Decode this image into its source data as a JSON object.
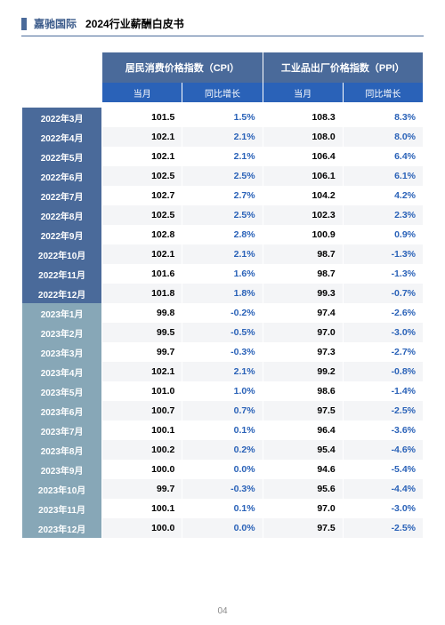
{
  "header": {
    "brand": "嘉驰国际",
    "title": "2024行业薪酬白皮书"
  },
  "table": {
    "groups": [
      {
        "label": "居民消费价格指数（CPI）"
      },
      {
        "label": "工业品出厂价格指数（PPI）"
      }
    ],
    "subcols": [
      "当月",
      "同比增长",
      "当月",
      "同比增长"
    ],
    "rows": [
      {
        "label": "2022年3月",
        "alt": false,
        "cpi": "101.5",
        "cpi_yoy": "1.5%",
        "ppi": "108.3",
        "ppi_yoy": "8.3%"
      },
      {
        "label": "2022年4月",
        "alt": false,
        "cpi": "102.1",
        "cpi_yoy": "2.1%",
        "ppi": "108.0",
        "ppi_yoy": "8.0%"
      },
      {
        "label": "2022年5月",
        "alt": false,
        "cpi": "102.1",
        "cpi_yoy": "2.1%",
        "ppi": "106.4",
        "ppi_yoy": "6.4%"
      },
      {
        "label": "2022年6月",
        "alt": false,
        "cpi": "102.5",
        "cpi_yoy": "2.5%",
        "ppi": "106.1",
        "ppi_yoy": "6.1%"
      },
      {
        "label": "2022年7月",
        "alt": false,
        "cpi": "102.7",
        "cpi_yoy": "2.7%",
        "ppi": "104.2",
        "ppi_yoy": "4.2%"
      },
      {
        "label": "2022年8月",
        "alt": false,
        "cpi": "102.5",
        "cpi_yoy": "2.5%",
        "ppi": "102.3",
        "ppi_yoy": "2.3%"
      },
      {
        "label": "2022年9月",
        "alt": false,
        "cpi": "102.8",
        "cpi_yoy": "2.8%",
        "ppi": "100.9",
        "ppi_yoy": "0.9%"
      },
      {
        "label": "2022年10月",
        "alt": false,
        "cpi": "102.1",
        "cpi_yoy": "2.1%",
        "ppi": "98.7",
        "ppi_yoy": "-1.3%"
      },
      {
        "label": "2022年11月",
        "alt": false,
        "cpi": "101.6",
        "cpi_yoy": "1.6%",
        "ppi": "98.7",
        "ppi_yoy": "-1.3%"
      },
      {
        "label": "2022年12月",
        "alt": false,
        "cpi": "101.8",
        "cpi_yoy": "1.8%",
        "ppi": "99.3",
        "ppi_yoy": "-0.7%"
      },
      {
        "label": "2023年1月",
        "alt": true,
        "cpi": "99.8",
        "cpi_yoy": "-0.2%",
        "ppi": "97.4",
        "ppi_yoy": "-2.6%"
      },
      {
        "label": "2023年2月",
        "alt": true,
        "cpi": "99.5",
        "cpi_yoy": "-0.5%",
        "ppi": "97.0",
        "ppi_yoy": "-3.0%"
      },
      {
        "label": "2023年3月",
        "alt": true,
        "cpi": "99.7",
        "cpi_yoy": "-0.3%",
        "ppi": "97.3",
        "ppi_yoy": "-2.7%"
      },
      {
        "label": "2023年4月",
        "alt": true,
        "cpi": "102.1",
        "cpi_yoy": "2.1%",
        "ppi": "99.2",
        "ppi_yoy": "-0.8%"
      },
      {
        "label": "2023年5月",
        "alt": true,
        "cpi": "101.0",
        "cpi_yoy": "1.0%",
        "ppi": "98.6",
        "ppi_yoy": "-1.4%"
      },
      {
        "label": "2023年6月",
        "alt": true,
        "cpi": "100.7",
        "cpi_yoy": "0.7%",
        "ppi": "97.5",
        "ppi_yoy": "-2.5%"
      },
      {
        "label": "2023年7月",
        "alt": true,
        "cpi": "100.1",
        "cpi_yoy": "0.1%",
        "ppi": "96.4",
        "ppi_yoy": "-3.6%"
      },
      {
        "label": "2023年8月",
        "alt": true,
        "cpi": "100.2",
        "cpi_yoy": "0.2%",
        "ppi": "95.4",
        "ppi_yoy": "-4.6%"
      },
      {
        "label": "2023年9月",
        "alt": true,
        "cpi": "100.0",
        "cpi_yoy": "0.0%",
        "ppi": "94.6",
        "ppi_yoy": "-5.4%"
      },
      {
        "label": "2023年10月",
        "alt": true,
        "cpi": "99.7",
        "cpi_yoy": "-0.3%",
        "ppi": "95.6",
        "ppi_yoy": "-4.4%"
      },
      {
        "label": "2023年11月",
        "alt": true,
        "cpi": "100.1",
        "cpi_yoy": "0.1%",
        "ppi": "97.0",
        "ppi_yoy": "-3.0%"
      },
      {
        "label": "2023年12月",
        "alt": true,
        "cpi": "100.0",
        "cpi_yoy": "0.0%",
        "ppi": "97.5",
        "ppi_yoy": "-2.5%"
      }
    ]
  },
  "page_number": "04",
  "colors": {
    "header_blue": "#4a6a9a",
    "subhead_blue": "#2a62b8",
    "label_alt": "#87a7b7",
    "stripe": "#f4f5f7",
    "text_blue": "#2a62b8"
  }
}
